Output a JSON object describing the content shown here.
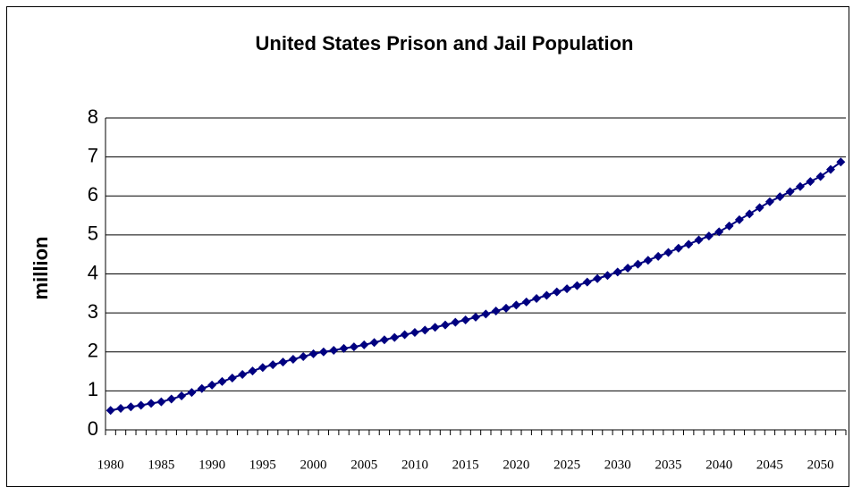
{
  "chart_data": {
    "type": "line",
    "title": "United States Prison and Jail Population",
    "y_label": "million",
    "categories": [
      "1980",
      null,
      null,
      null,
      null,
      "1985",
      null,
      null,
      null,
      null,
      "1990",
      null,
      null,
      null,
      null,
      "1995",
      null,
      null,
      null,
      null,
      "2000",
      null,
      null,
      null,
      null,
      "2005",
      null,
      null,
      null,
      null,
      "2010",
      null,
      null,
      null,
      null,
      "2015",
      null,
      null,
      null,
      null,
      "2020",
      null,
      null,
      null,
      null,
      "2025",
      null,
      null,
      null,
      null,
      "2030",
      null,
      null,
      null,
      null,
      "2035",
      null,
      null,
      null,
      null,
      "2040",
      null,
      null,
      null,
      null,
      "2045",
      null,
      null,
      null,
      null,
      "2050",
      null,
      null
    ],
    "values": [
      0.5,
      0.55,
      0.59,
      0.63,
      0.68,
      0.72,
      0.79,
      0.87,
      0.96,
      1.06,
      1.15,
      1.24,
      1.33,
      1.42,
      1.51,
      1.6,
      1.67,
      1.74,
      1.81,
      1.88,
      1.95,
      2.0,
      2.04,
      2.09,
      2.13,
      2.18,
      2.24,
      2.31,
      2.37,
      2.44,
      2.5,
      2.56,
      2.63,
      2.69,
      2.76,
      2.82,
      2.89,
      2.97,
      3.05,
      3.12,
      3.2,
      3.28,
      3.37,
      3.45,
      3.54,
      3.62,
      3.7,
      3.79,
      3.88,
      3.96,
      4.05,
      4.15,
      4.25,
      4.35,
      4.45,
      4.55,
      4.66,
      4.76,
      4.87,
      4.97,
      5.08,
      5.23,
      5.39,
      5.54,
      5.7,
      5.85,
      5.98,
      6.11,
      6.24,
      6.37,
      6.5,
      6.68,
      6.87
    ],
    "color": "#000080",
    "ylim": [
      0,
      8
    ],
    "yticks": [
      0,
      1,
      2,
      3,
      4,
      5,
      6,
      7,
      8
    ],
    "grid": true
  }
}
